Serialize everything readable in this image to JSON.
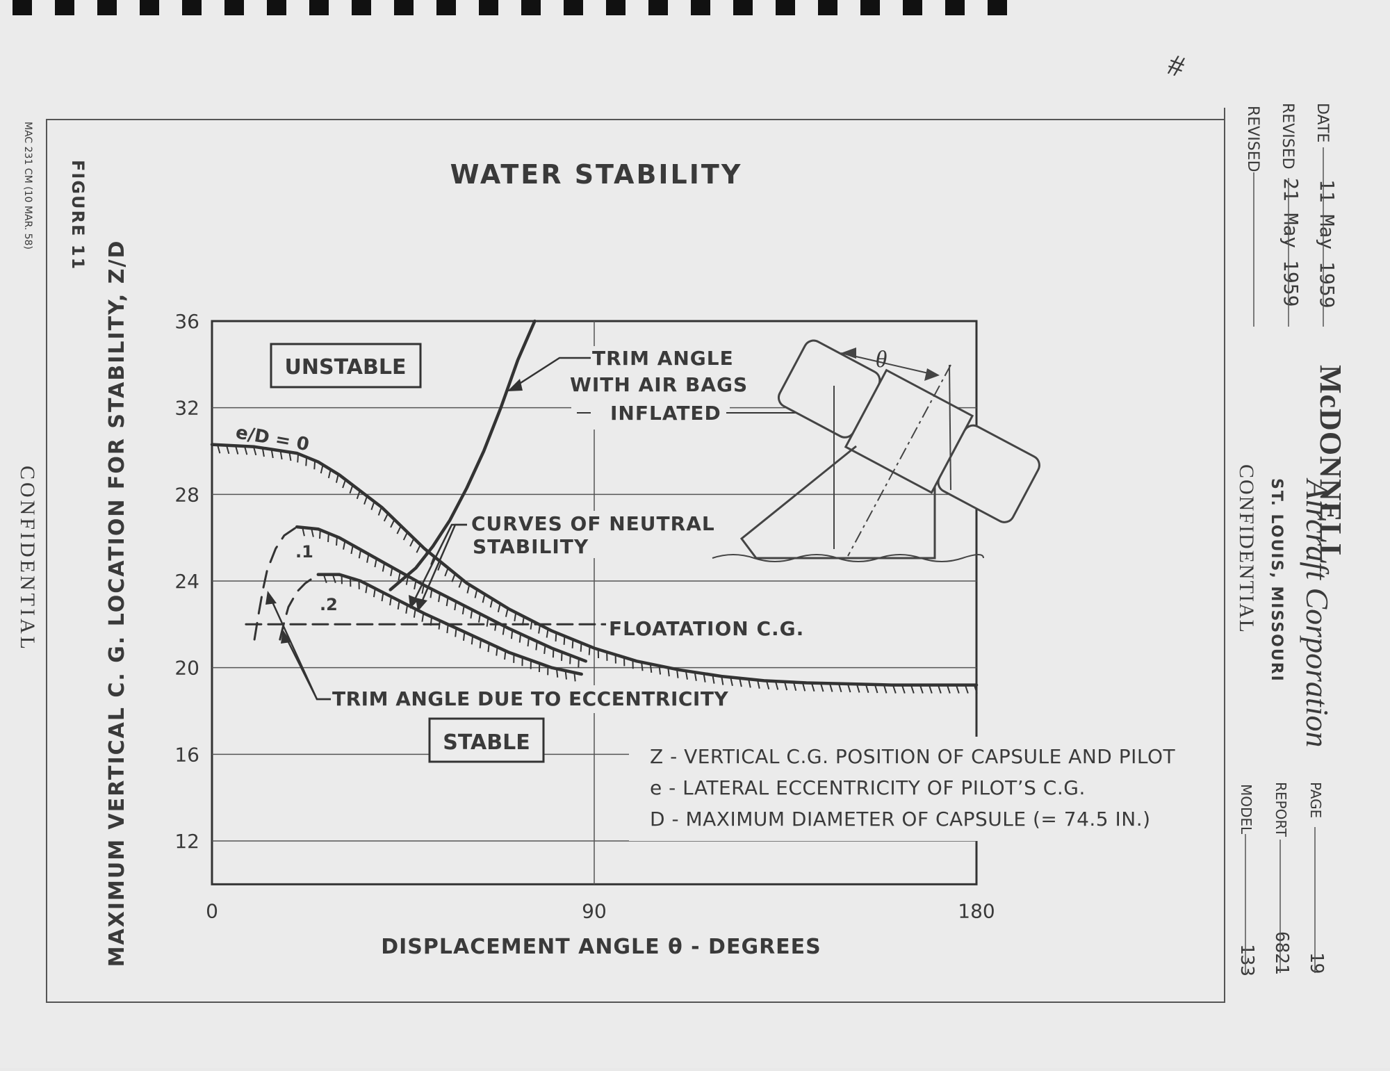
{
  "page": {
    "confidential_left": "CONFIDENTIAL",
    "form_number": "MAC 231 CM (10 MAR. 58)",
    "figure_label": "FIGURE 11",
    "corner_mark": "#"
  },
  "sidebar": {
    "date_label": "DATE",
    "date_value": "11 May 1959",
    "revised1_label": "REVISED",
    "revised1_value": "21 May 1959",
    "revised2_label": "REVISED",
    "revised2_value": "",
    "company_name": "McDONNELL",
    "company_script": "Aircraft Corporation",
    "location": "ST. LOUIS, MISSOURI",
    "confidential": "CONFIDENTIAL",
    "page_label": "PAGE",
    "page_value": "19",
    "report_label": "REPORT",
    "report_value": "6821",
    "model_label": "MODEL",
    "model_value": "133"
  },
  "chart_data": {
    "type": "line",
    "title": "WATER STABILITY",
    "xlabel": "DISPLACEMENT ANGLE θ - DEGREES",
    "ylabel": "MAXIMUM VERTICAL C. G. LOCATION FOR STABILITY, Z/D",
    "xlim": [
      0,
      180
    ],
    "ylim": [
      10,
      36
    ],
    "x_ticks": [
      0,
      90,
      180
    ],
    "y_ticks": [
      12,
      16,
      20,
      24,
      28,
      32,
      36
    ],
    "grid": true,
    "series": [
      {
        "name": "e/D = 0",
        "style": "neutral",
        "x": [
          0,
          10,
          20,
          25,
          30,
          40,
          50,
          60,
          70,
          80,
          90,
          100,
          110,
          120,
          130,
          140,
          150,
          160,
          170,
          180
        ],
        "y": [
          30.3,
          30.2,
          29.9,
          29.5,
          28.9,
          27.4,
          25.5,
          23.9,
          22.7,
          21.7,
          20.9,
          20.3,
          19.9,
          19.6,
          19.4,
          19.3,
          19.25,
          19.2,
          19.2,
          19.2
        ]
      },
      {
        "name": ".1",
        "style": "neutral",
        "x": [
          20,
          25,
          30,
          40,
          50,
          60,
          70,
          80,
          88
        ],
        "y": [
          26.5,
          26.4,
          26.0,
          24.9,
          23.8,
          22.8,
          21.8,
          20.9,
          20.3
        ]
      },
      {
        "name": ".2",
        "style": "neutral",
        "x": [
          25,
          30,
          35,
          40,
          50,
          60,
          70,
          80,
          87
        ],
        "y": [
          24.3,
          24.3,
          24.0,
          23.5,
          22.5,
          21.6,
          20.7,
          20.0,
          19.7
        ]
      },
      {
        "name": "TRIM ANGLE WITH AIR BAGS INFLATED",
        "style": "solid",
        "x": [
          42,
          48,
          52,
          56,
          60,
          64,
          68,
          72,
          76
        ],
        "y": [
          23.6,
          24.6,
          25.6,
          26.8,
          28.3,
          30.0,
          32.0,
          34.2,
          36.0
        ]
      },
      {
        "name": ".1 trim",
        "style": "dashed",
        "x": [
          10,
          11,
          12,
          13,
          15,
          17,
          20
        ],
        "y": [
          21.3,
          22.5,
          23.6,
          24.5,
          25.5,
          26.1,
          26.5
        ]
      },
      {
        "name": ".2 trim",
        "style": "dashed",
        "x": [
          16,
          17,
          18,
          20,
          22,
          25
        ],
        "y": [
          21.3,
          22.1,
          22.8,
          23.5,
          23.9,
          24.3
        ]
      },
      {
        "name": "FLOATATION C.G.",
        "style": "dashed",
        "x": [
          8,
          94
        ],
        "y": [
          22.0,
          22.0
        ]
      }
    ],
    "annotations": {
      "unstable": "UNSTABLE",
      "stable": "STABLE",
      "ed_zero": "e/D = 0",
      "ed_one": ".1",
      "ed_two": ".2",
      "trim_air_1": "TRIM ANGLE",
      "trim_air_2": "WITH AIR BAGS",
      "trim_air_3": "INFLATED",
      "neutral_1": "CURVES OF NEUTRAL",
      "neutral_2": "STABILITY",
      "floatation": "FLOATATION C.G.",
      "eccentricity": "TRIM ANGLE DUE TO ECCENTRICITY",
      "theta": "θ"
    },
    "legend": [
      "Z - VERTICAL C.G. POSITION OF CAPSULE AND PILOT",
      "e - LATERAL ECCENTRICITY OF PILOT’S C.G.",
      "D - MAXIMUM DIAMETER OF CAPSULE (= 74.5 IN.)"
    ]
  }
}
